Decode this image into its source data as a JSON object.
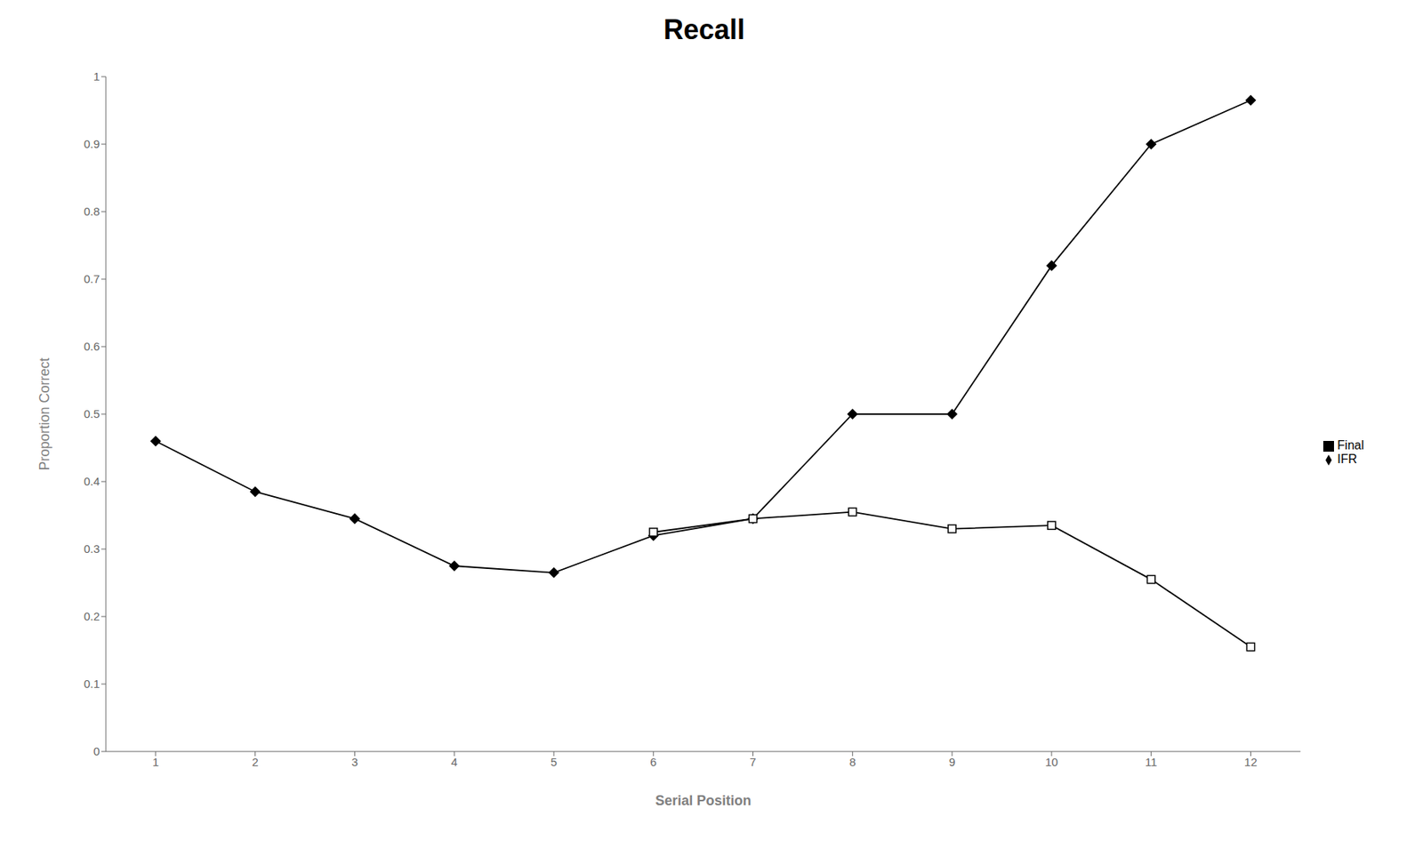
{
  "chart_data": {
    "type": "line",
    "title": "Recall",
    "xlabel": "Serial Position",
    "ylabel": "Proportion Correct",
    "x": [
      1,
      2,
      3,
      4,
      5,
      6,
      7,
      8,
      9,
      10,
      11,
      12
    ],
    "series": [
      {
        "name": "IFR",
        "color": "#000000",
        "marker": "diamond",
        "values": [
          0.46,
          0.385,
          0.345,
          0.275,
          0.265,
          0.32,
          0.345,
          0.5,
          0.5,
          0.72,
          0.9,
          0.965
        ]
      },
      {
        "name": "Final",
        "color": "#000000",
        "marker": "square",
        "values": [
          null,
          null,
          null,
          null,
          null,
          0.325,
          0.345,
          0.355,
          0.33,
          0.335,
          0.255,
          0.155
        ]
      }
    ],
    "xlim": [
      0.5,
      12.5
    ],
    "xticks": [
      1,
      2,
      3,
      4,
      5,
      6,
      7,
      8,
      9,
      10,
      11,
      12
    ],
    "ylim": [
      0,
      1.0
    ],
    "yticks": [
      0,
      0.1,
      0.2,
      0.3,
      0.4,
      0.5,
      0.6,
      0.7,
      0.8,
      0.9,
      1
    ],
    "grid": false,
    "legend": "right"
  }
}
